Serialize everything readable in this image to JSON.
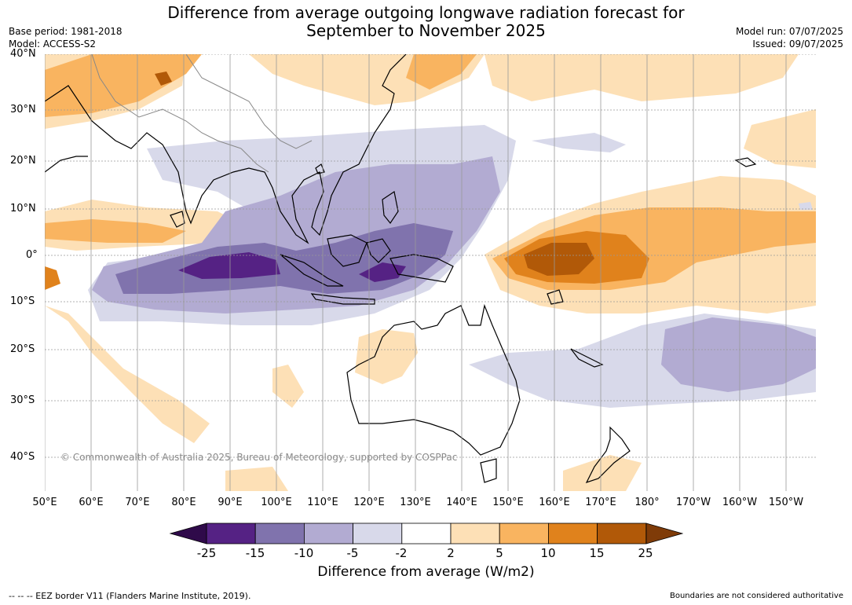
{
  "title_line1": "Difference from average outgoing longwave radiation forecast for",
  "title_line2": "September to November 2025",
  "meta_left": [
    "Base period: 1981-2018",
    "Model: ACCESS-S2"
  ],
  "meta_right": [
    "Model run: 07/07/2025",
    "Issued: 09/07/2025"
  ],
  "lat_labels": [
    "40°N",
    "30°N",
    "20°N",
    "10°N",
    "0°",
    "10°S",
    "20°S",
    "30°S",
    "40°S"
  ],
  "lon_labels": [
    "50°E",
    "60°E",
    "70°E",
    "80°E",
    "90°E",
    "100°E",
    "110°E",
    "120°E",
    "130°E",
    "140°E",
    "150°E",
    "160°E",
    "170°E",
    "180°",
    "170°W",
    "160°W",
    "150°W"
  ],
  "copyright": "© Commonwealth of Australia 2025, Bureau of Meteorology, supported by COSPPac",
  "colorbar": {
    "ticks": [
      "-25",
      "-15",
      "-10",
      "-5",
      "-2",
      "2",
      "5",
      "10",
      "15",
      "25"
    ],
    "colors": [
      "#2f0a4a",
      "#552284",
      "#8073ad",
      "#b2abd2",
      "#d8d9ea",
      "#ffffff",
      "#fde0b6",
      "#f9b460",
      "#e0821c",
      "#b15908",
      "#7f3b08"
    ],
    "label": "Difference from average (W/m2)"
  },
  "footer_left": "--  --  -- EEZ border V11 (Flanders Marine Institute, 2019).",
  "footer_right": "Boundaries are not considered authoritative"
}
